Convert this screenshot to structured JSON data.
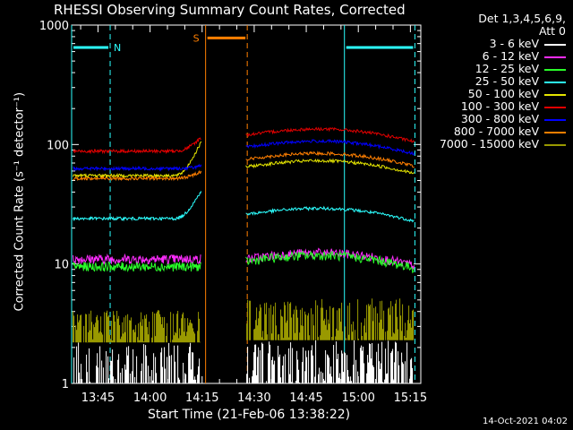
{
  "chart_data": {
    "type": "line",
    "title": "RHESSI Observing Summary Count Rates, Corrected",
    "xlabel": "Start Time (21-Feb-06 13:38:22)",
    "ylabel": "Corrected Count Rate (s⁻¹ detector⁻¹)",
    "y_scale": "log",
    "ylim": [
      1,
      1000
    ],
    "y_ticks": [
      "1",
      "10",
      "100",
      "1000"
    ],
    "x_ticks": [
      "13:45",
      "14:00",
      "14:15",
      "14:30",
      "14:45",
      "15:00",
      "15:15"
    ],
    "x_tick_minutes": [
      826,
      841,
      856,
      871,
      886,
      901,
      916
    ],
    "xlim_minutes": [
      818.4,
      919
    ],
    "grid": false,
    "legend_header": [
      "Det 1,3,4,5,6,9,",
      "Att 0"
    ],
    "legend_position": "top-right",
    "data_gap_minutes": [
      856,
      868
    ],
    "series": [
      {
        "name": "3 - 6 keV",
        "color": "#ffffff",
        "level_before": 1.6,
        "level_after": 1.7
      },
      {
        "name": "6 - 12 keV",
        "color": "#ff2cff",
        "level_before": 11,
        "level_after": 11
      },
      {
        "name": "12 - 25 keV",
        "color": "#29ff29",
        "level_before": 9.5,
        "level_after": 10.5
      },
      {
        "name": "25 - 50 keV",
        "color": "#2cffff",
        "level_before": 24,
        "level_after": 26
      },
      {
        "name": "50 - 100 keV",
        "color": "#e6e600",
        "level_before": 55,
        "level_after": 65
      },
      {
        "name": "100 - 300 keV",
        "color": "#e00000",
        "level_before": 88,
        "level_after": 120
      },
      {
        "name": "300 - 800 keV",
        "color": "#0000ff",
        "level_before": 63,
        "level_after": 95
      },
      {
        "name": "800 - 7000 keV",
        "color": "#ff7f00",
        "level_before": 52,
        "level_after": 75
      },
      {
        "name": "7000 - 15000 keV",
        "color": "#999900",
        "level_before": 2.8,
        "level_after": 3.2
      }
    ],
    "flags": [
      {
        "label": "N",
        "color": "#2cffff",
        "y": 650,
        "start": 818.4,
        "end": 829.5
      },
      {
        "label": "S",
        "color": "#ff7f00",
        "y": 780,
        "start": 857,
        "end": 869
      },
      {
        "label": "",
        "color": "#2cffff",
        "y": 650,
        "start": 897,
        "end": 917.3
      }
    ],
    "vlines": [
      {
        "x": 818.4,
        "color": "#2cffff",
        "style": "solid"
      },
      {
        "x": 829.5,
        "color": "#2cffff",
        "style": "dashed"
      },
      {
        "x": 857,
        "color": "#ff7f00",
        "style": "solid"
      },
      {
        "x": 869,
        "color": "#ff7f00",
        "style": "dashed"
      },
      {
        "x": 897,
        "color": "#2cffff",
        "style": "solid"
      },
      {
        "x": 917.3,
        "color": "#2cffff",
        "style": "dashed"
      }
    ]
  },
  "footer": "14-Oct-2021 04:02"
}
